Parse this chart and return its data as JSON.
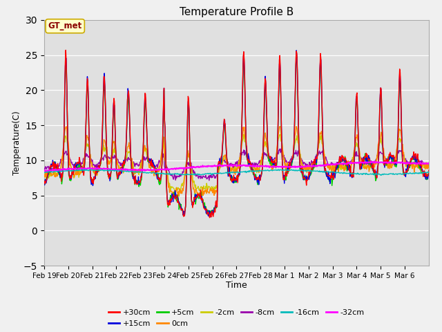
{
  "title": "Temperature Profile B",
  "xlabel": "Time",
  "ylabel": "Temperature(C)",
  "ylim": [
    -5,
    30
  ],
  "yticks": [
    -5,
    0,
    5,
    10,
    15,
    20,
    25,
    30
  ],
  "annotation": "GT_met",
  "plot_bg": "#e0e0e0",
  "fig_bg": "#f0f0f0",
  "series": {
    "+30cm": {
      "color": "#ff0000",
      "lw": 1.0,
      "zorder": 5
    },
    "+15cm": {
      "color": "#0000dd",
      "lw": 1.0,
      "zorder": 4
    },
    "+5cm": {
      "color": "#00cc00",
      "lw": 1.0,
      "zorder": 4
    },
    "0cm": {
      "color": "#ff8800",
      "lw": 1.0,
      "zorder": 3
    },
    "-2cm": {
      "color": "#cccc00",
      "lw": 1.0,
      "zorder": 3
    },
    "-8cm": {
      "color": "#9900aa",
      "lw": 1.0,
      "zorder": 3
    },
    "-16cm": {
      "color": "#00bbbb",
      "lw": 1.0,
      "zorder": 6
    },
    "-32cm": {
      "color": "#ff00ff",
      "lw": 1.5,
      "zorder": 6
    }
  },
  "xtick_labels": [
    "Feb 19",
    "Feb 20",
    "Feb 21",
    "Feb 22",
    "Feb 23",
    "Feb 24",
    "Feb 25",
    "Feb 26",
    "Feb 27",
    "Feb 28",
    "Mar 1",
    "Mar 2",
    "Mar 3",
    "Mar 4",
    "Mar 5",
    "Mar 6"
  ],
  "n_days": 16,
  "pts_per_day": 48
}
